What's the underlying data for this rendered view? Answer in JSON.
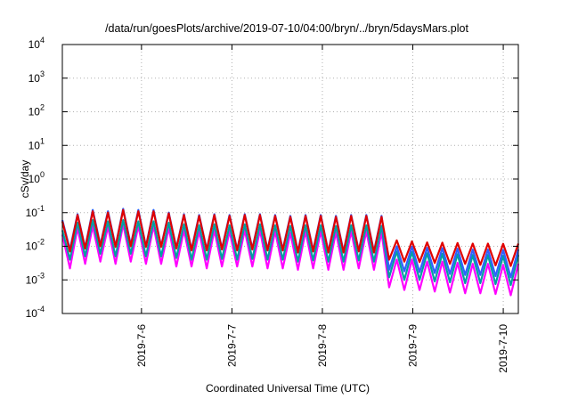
{
  "chart_data": {
    "type": "line",
    "title": "/data/run/goesPlots/archive/2019-07-10/04:00/bryn/../bryn/5daysMars.plot",
    "xlabel": "Coordinated Universal Time (UTC)",
    "ylabel": "cSv/day",
    "y_scale": "log",
    "ylim": [
      0.0001,
      10000
    ],
    "xlim": [
      "2019-07-05T03:00",
      "2019-07-10T04:00"
    ],
    "grid": true,
    "legend": "none",
    "x_ticks": [
      {
        "label": "2019-7-6",
        "t": "2019-07-06T00:00"
      },
      {
        "label": "2019-7-7",
        "t": "2019-07-07T00:00"
      },
      {
        "label": "2019-7-8",
        "t": "2019-07-08T00:00"
      },
      {
        "label": "2019-7-9",
        "t": "2019-07-09T00:00"
      },
      {
        "label": "2019-7-10",
        "t": "2019-07-10T00:00"
      }
    ],
    "y_ticks": [
      {
        "base": "10",
        "exp": "-4",
        "value": 0.0001
      },
      {
        "base": "10",
        "exp": "-3",
        "value": 0.001
      },
      {
        "base": "10",
        "exp": "-2",
        "value": 0.01
      },
      {
        "base": "10",
        "exp": "-1",
        "value": 0.1
      },
      {
        "base": "10",
        "exp": "0",
        "value": 1
      },
      {
        "base": "10",
        "exp": "1",
        "value": 10
      },
      {
        "base": "10",
        "exp": "2",
        "value": 100
      },
      {
        "base": "10",
        "exp": "3",
        "value": 1000
      },
      {
        "base": "10",
        "exp": "4",
        "value": 10000
      }
    ],
    "series": [
      {
        "color": "#ff00ff",
        "values": [
          0.022,
          0.0022,
          0.035,
          0.003,
          0.04,
          0.0035,
          0.038,
          0.003,
          0.045,
          0.0035,
          0.04,
          0.003,
          0.04,
          0.003,
          0.035,
          0.0025,
          0.03,
          0.0025,
          0.028,
          0.0022,
          0.03,
          0.0025,
          0.028,
          0.0025,
          0.03,
          0.0025,
          0.03,
          0.0022,
          0.028,
          0.0022,
          0.025,
          0.002,
          0.028,
          0.0022,
          0.028,
          0.002,
          0.026,
          0.002,
          0.028,
          0.0022,
          0.028,
          0.002,
          0.026,
          0.0006,
          0.004,
          0.0005,
          0.004,
          0.0005,
          0.0035,
          0.00045,
          0.0035,
          0.00042,
          0.0032,
          0.0004,
          0.003,
          0.0004,
          0.003,
          0.00038,
          0.0028,
          0.00035,
          0.003
        ]
      },
      {
        "color": "#00a0a0",
        "values": [
          0.03,
          0.004,
          0.05,
          0.005,
          0.06,
          0.006,
          0.055,
          0.005,
          0.06,
          0.006,
          0.055,
          0.005,
          0.055,
          0.005,
          0.05,
          0.0045,
          0.045,
          0.004,
          0.042,
          0.004,
          0.045,
          0.0042,
          0.042,
          0.004,
          0.045,
          0.0042,
          0.045,
          0.004,
          0.042,
          0.004,
          0.04,
          0.0035,
          0.042,
          0.0038,
          0.042,
          0.0035,
          0.04,
          0.0035,
          0.042,
          0.0038,
          0.042,
          0.0035,
          0.04,
          0.0012,
          0.007,
          0.001,
          0.0068,
          0.001,
          0.0062,
          0.0009,
          0.006,
          0.00085,
          0.0058,
          0.0008,
          0.0055,
          0.0008,
          0.0055,
          0.00075,
          0.0052,
          0.0007,
          0.0055
        ]
      },
      {
        "color": "#3060ff",
        "values": [
          0.06,
          0.008,
          0.09,
          0.009,
          0.12,
          0.011,
          0.11,
          0.01,
          0.13,
          0.011,
          0.12,
          0.01,
          0.12,
          0.01,
          0.1,
          0.009,
          0.09,
          0.008,
          0.085,
          0.008,
          0.09,
          0.0085,
          0.085,
          0.008,
          0.09,
          0.0085,
          0.09,
          0.008,
          0.085,
          0.008,
          0.08,
          0.007,
          0.085,
          0.0075,
          0.085,
          0.007,
          0.08,
          0.007,
          0.085,
          0.0075,
          0.085,
          0.007,
          0.08,
          0.002,
          0.01,
          0.0018,
          0.0098,
          0.0017,
          0.009,
          0.0016,
          0.0088,
          0.0015,
          0.0085,
          0.0014,
          0.008,
          0.0014,
          0.008,
          0.0013,
          0.0078,
          0.0012,
          0.008
        ]
      },
      {
        "color": "#e00000",
        "values": [
          0.055,
          0.007,
          0.085,
          0.0085,
          0.11,
          0.01,
          0.1,
          0.0095,
          0.12,
          0.01,
          0.11,
          0.0095,
          0.11,
          0.0095,
          0.095,
          0.0085,
          0.085,
          0.0075,
          0.08,
          0.0075,
          0.085,
          0.008,
          0.08,
          0.0075,
          0.085,
          0.008,
          0.085,
          0.0075,
          0.08,
          0.0075,
          0.075,
          0.0065,
          0.08,
          0.007,
          0.08,
          0.0065,
          0.075,
          0.0065,
          0.08,
          0.007,
          0.08,
          0.0065,
          0.075,
          0.004,
          0.015,
          0.0035,
          0.014,
          0.0034,
          0.013,
          0.0032,
          0.0128,
          0.003,
          0.0125,
          0.003,
          0.012,
          0.0028,
          0.012,
          0.0027,
          0.0118,
          0.0026,
          0.012
        ]
      }
    ]
  }
}
